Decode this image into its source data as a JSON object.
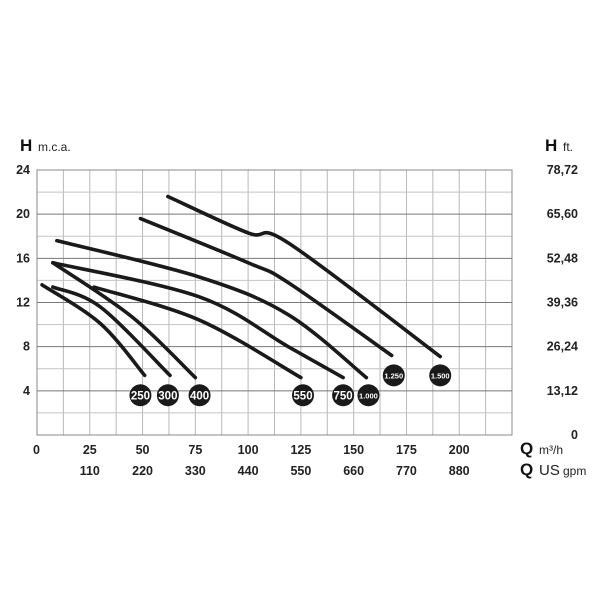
{
  "chart_data": {
    "type": "line",
    "y_left": {
      "symbol": "H",
      "unit": "m.c.a.",
      "range": [
        0,
        24
      ],
      "ticks": [
        "0",
        "4",
        "8",
        "12",
        "16",
        "20",
        "24"
      ],
      "tick_values": [
        0,
        4,
        8,
        12,
        16,
        20,
        24
      ]
    },
    "y_right": {
      "symbol": "H",
      "unit": "ft.",
      "ticks": [
        "0",
        "13,12",
        "26,24",
        "39,36",
        "52,48",
        "65,60",
        "78,72"
      ]
    },
    "x_primary": {
      "symbol": "Q",
      "unit": "m³/h",
      "range": [
        0,
        225
      ],
      "ticks": [
        "25",
        "50",
        "75",
        "100",
        "125",
        "150",
        "175",
        "200"
      ],
      "tick_values": [
        25,
        50,
        75,
        100,
        125,
        150,
        175,
        200
      ]
    },
    "x_secondary": {
      "symbol": "Q",
      "unit_main": "US",
      "unit_sub": "gpm",
      "ticks": [
        "110",
        "220",
        "330",
        "440",
        "550",
        "660",
        "770",
        "880"
      ]
    },
    "origin_label": "0",
    "grid": {
      "x_step": 12.5,
      "y_step": 2,
      "on": true
    },
    "line_color": "#1a1a1a",
    "series": [
      {
        "name": "250",
        "points": [
          [
            2.4,
            13.6
          ],
          [
            30,
            10.1
          ],
          [
            51,
            5.4
          ]
        ],
        "label_at": [
          49,
          3.6
        ]
      },
      {
        "name": "300",
        "points": [
          [
            7.5,
            13.4
          ],
          [
            30,
            11.6
          ],
          [
            63,
            5.4
          ]
        ],
        "label_at": [
          62,
          3.6
        ]
      },
      {
        "name": "400",
        "points": [
          [
            7.5,
            15.6
          ],
          [
            45,
            10.7
          ],
          [
            75,
            5.2
          ]
        ],
        "label_at": [
          77,
          3.6
        ]
      },
      {
        "name": "550",
        "points": [
          [
            27,
            13.4
          ],
          [
            77,
            10.4
          ],
          [
            125,
            5.2
          ]
        ],
        "label_at": [
          126,
          3.6
        ]
      },
      {
        "name": "750",
        "points": [
          [
            7.5,
            15.6
          ],
          [
            77,
            12.5
          ],
          [
            119,
            8.0
          ],
          [
            145,
            5.2
          ]
        ],
        "label_at": [
          145,
          3.6
        ]
      },
      {
        "name": "1.000",
        "points": [
          [
            9.4,
            17.6
          ],
          [
            77,
            14.3
          ],
          [
            119,
            10.9
          ],
          [
            156,
            5.2
          ]
        ],
        "label_at": [
          157,
          3.6
        ]
      },
      {
        "name": "1.250",
        "points": [
          [
            49,
            19.6
          ],
          [
            100,
            15.6
          ],
          [
            119,
            13.8
          ],
          [
            168,
            7.2
          ]
        ],
        "label_at": [
          169,
          5.4
        ]
      },
      {
        "name": "1.500",
        "points": [
          [
            62,
            21.6
          ],
          [
            100,
            18.3
          ],
          [
            119,
            17.4
          ],
          [
            191,
            7.1
          ]
        ],
        "label_at": [
          191,
          5.4
        ]
      }
    ]
  }
}
